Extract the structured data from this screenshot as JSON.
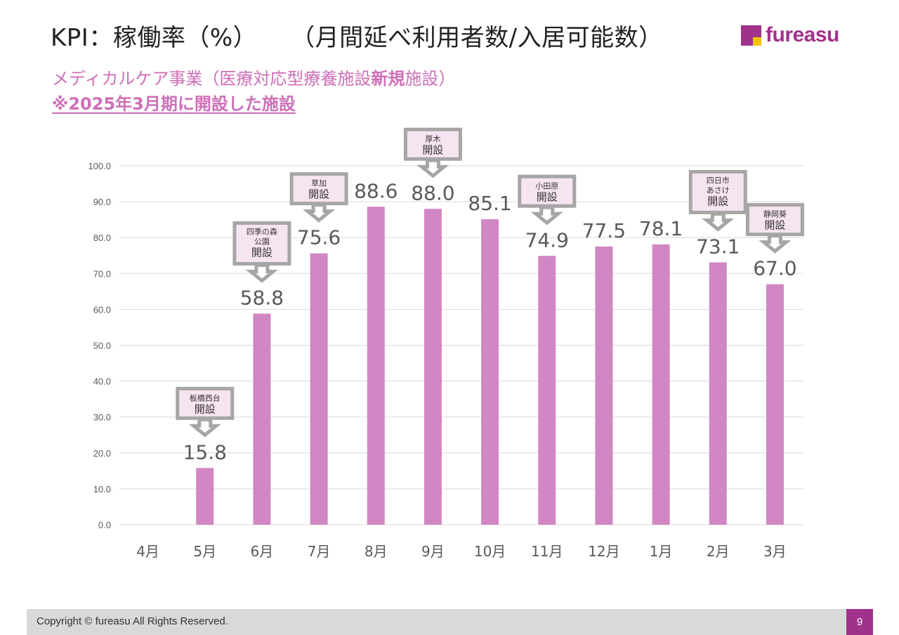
{
  "header": {
    "title_main": "KPI：稼働率（%）",
    "title_formula": "（月間延べ利用者数/入居可能数）",
    "logo_text": "fureasu",
    "subtitle_prefix": "メディカルケア事業（医療対応型療養施設",
    "subtitle_bold": "新規",
    "subtitle_suffix": "施設）",
    "subtitle_note": "※2025年3月期に開設した施設"
  },
  "colors": {
    "bar": "#d087c3",
    "subtitle": "#cd6fb8",
    "brand": "#a1328b",
    "logo_accent": "#f5c400",
    "callout_border": "#a6a6a6",
    "callout_fill": "#f7e4f1"
  },
  "chart_data": {
    "type": "bar",
    "categories": [
      "4月",
      "5月",
      "6月",
      "7月",
      "8月",
      "9月",
      "10月",
      "11月",
      "12月",
      "1月",
      "2月",
      "3月"
    ],
    "values": [
      null,
      15.8,
      58.8,
      75.6,
      88.6,
      88.0,
      85.1,
      74.9,
      77.5,
      78.1,
      73.1,
      67.0
    ],
    "data_labels": [
      "",
      "15.8",
      "58.8",
      "75.6",
      "88.6",
      "88.0",
      "85.1",
      "74.9",
      "77.5",
      "78.1",
      "73.1",
      "67.0"
    ],
    "ylim": [
      0,
      100
    ],
    "yticks": [
      "0.0",
      "10.0",
      "20.0",
      "30.0",
      "40.0",
      "50.0",
      "60.0",
      "70.0",
      "80.0",
      "90.0",
      "100.0"
    ],
    "grid": true,
    "annotations": [
      {
        "category": "5月",
        "lines": [
          "板橋西台",
          "開設"
        ]
      },
      {
        "category": "6月",
        "lines": [
          "四季の森",
          "公園",
          "開設"
        ]
      },
      {
        "category": "7月",
        "lines": [
          "草加",
          "開設"
        ]
      },
      {
        "category": "9月",
        "lines": [
          "厚木",
          "開設"
        ]
      },
      {
        "category": "11月",
        "lines": [
          "小田原",
          "開設"
        ]
      },
      {
        "category": "2月",
        "lines": [
          "四日市",
          "あさけ",
          "開設"
        ]
      },
      {
        "category": "3月",
        "lines": [
          "静岡葵",
          "開設"
        ]
      }
    ]
  },
  "footer": {
    "copyright": "Copyright © fureasu All Rights Reserved.",
    "page_number": "9"
  }
}
